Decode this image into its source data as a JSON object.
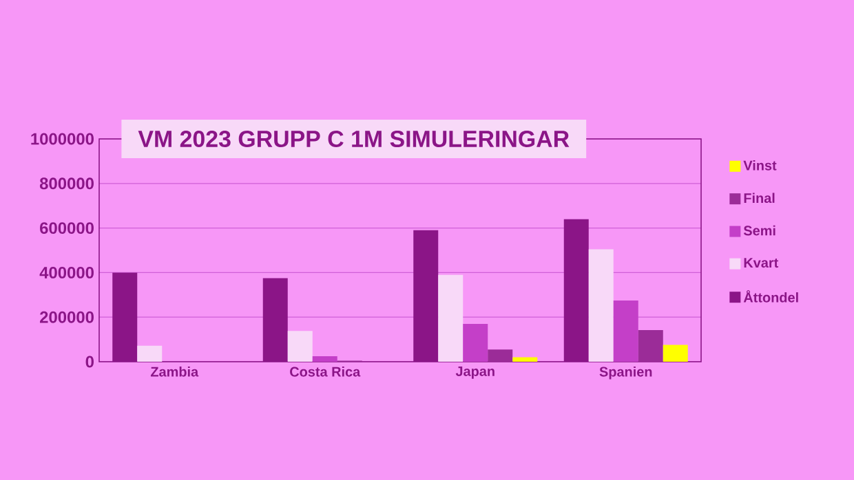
{
  "chart_data": {
    "type": "bar",
    "title": "VM 2023 GRUPP C 1M SIMULERINGAR",
    "categories": [
      "Zambia",
      "Costa Rica",
      "Japan",
      "Spanien"
    ],
    "series": [
      {
        "name": "Åttondel",
        "color": "#8b1587",
        "values": [
          400000,
          375000,
          590000,
          640000
        ]
      },
      {
        "name": "Kvart",
        "color": "#f8d9f8",
        "values": [
          72000,
          138000,
          390000,
          505000
        ]
      },
      {
        "name": "Semi",
        "color": "#c43fc8",
        "values": [
          0,
          25000,
          170000,
          275000
        ]
      },
      {
        "name": "Final",
        "color": "#9b2c98",
        "values": [
          0,
          5000,
          55000,
          142000
        ]
      },
      {
        "name": "Vinst",
        "color": "#ffff00",
        "values": [
          0,
          0,
          20000,
          76000
        ]
      }
    ],
    "ylim": [
      0,
      1000000
    ],
    "yticks": [
      0,
      200000,
      400000,
      600000,
      800000,
      1000000
    ],
    "grid": "y",
    "legend": "right"
  }
}
